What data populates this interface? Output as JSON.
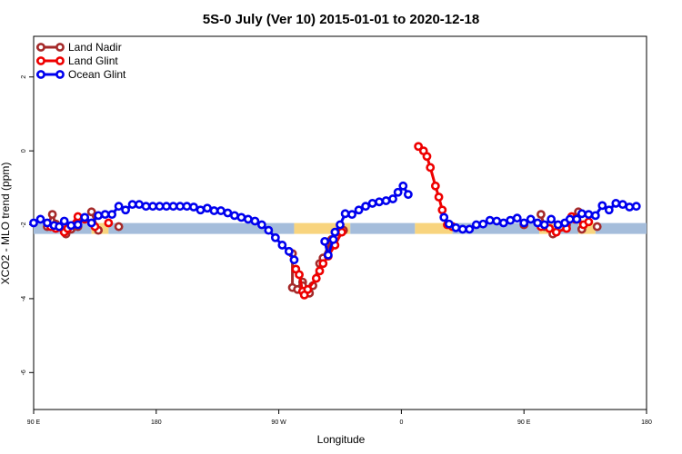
{
  "chart_data": {
    "type": "line",
    "title": "5S-0 July (Ver 10)   2015-01-01 to 2020-12-18",
    "xlabel": "Longitude",
    "ylabel": "XCO2 - MLO trend (ppm)",
    "xlim": [
      0,
      360
    ],
    "ylim": [
      -7,
      3.1
    ],
    "x_ticks": [
      {
        "value": 0,
        "label": "90 E"
      },
      {
        "value": 72,
        "label": "180"
      },
      {
        "value": 144,
        "label": "90 W"
      },
      {
        "value": 216,
        "label": "0"
      },
      {
        "value": 288,
        "label": "90 E"
      },
      {
        "value": 360,
        "label": "180"
      }
    ],
    "y_ticks": [
      {
        "value": -6,
        "label": "-6"
      },
      {
        "value": -4,
        "label": "-4"
      },
      {
        "value": -2,
        "label": "-2"
      },
      {
        "value": 0,
        "label": "0"
      },
      {
        "value": 2,
        "label": "2"
      }
    ],
    "land_ocean_band": {
      "y": -2.1,
      "segments": [
        {
          "x0": 0,
          "x1": 34,
          "kind": "ocean"
        },
        {
          "x0": 34,
          "x1": 44,
          "kind": "land"
        },
        {
          "x0": 44,
          "x1": 153,
          "kind": "ocean"
        },
        {
          "x0": 153,
          "x1": 186,
          "kind": "land"
        },
        {
          "x0": 186,
          "x1": 224,
          "kind": "ocean"
        },
        {
          "x0": 224,
          "x1": 246,
          "kind": "land"
        },
        {
          "x0": 246,
          "x1": 297,
          "kind": "ocean"
        },
        {
          "x0": 297,
          "x1": 306,
          "kind": "land"
        },
        {
          "x0": 306,
          "x1": 320,
          "kind": "ocean"
        },
        {
          "x0": 320,
          "x1": 330,
          "kind": "land"
        },
        {
          "x0": 330,
          "x1": 360,
          "kind": "ocean"
        }
      ],
      "colors": {
        "ocean": "#a5bddb",
        "land": "#f8d47e"
      }
    },
    "legend": {
      "placement": "top-left"
    },
    "series": [
      {
        "name": "Land Nadir",
        "color": "#a52a2a",
        "points": [
          [
            8,
            -2.05
          ],
          [
            11,
            -1.72
          ],
          [
            13,
            -1.98
          ],
          [
            19,
            -2.25
          ],
          [
            22,
            -2.12
          ],
          [
            26,
            -2.05
          ],
          [
            34,
            -1.65
          ],
          [
            38,
            -2.15
          ],
          [
            50,
            -2.05
          ],
          [
            152,
            -2.78
          ],
          [
            152,
            -3.7
          ],
          [
            155,
            -3.75
          ],
          [
            158,
            -3.55
          ],
          [
            158,
            -3.65
          ],
          [
            162,
            -3.85
          ],
          [
            164,
            -3.65
          ],
          [
            168,
            -3.05
          ],
          [
            170,
            -2.9
          ],
          [
            175,
            -2.4
          ],
          [
            178,
            -2.2
          ],
          [
            182,
            -2.15
          ],
          [
            288,
            -2.0
          ],
          [
            298,
            -1.72
          ],
          [
            300,
            -2.05
          ],
          [
            305,
            -2.25
          ],
          [
            313,
            -2.0
          ],
          [
            320,
            -1.65
          ],
          [
            322,
            -2.12
          ],
          [
            331,
            -2.05
          ]
        ]
      },
      {
        "name": "Land Glint",
        "color": "#ee0000",
        "points": [
          [
            10,
            -2.05
          ],
          [
            13,
            -2.1
          ],
          [
            18,
            -2.2
          ],
          [
            20,
            -2.1
          ],
          [
            26,
            -1.78
          ],
          [
            30,
            -1.85
          ],
          [
            36,
            -2.05
          ],
          [
            44,
            -1.95
          ],
          [
            154,
            -3.2
          ],
          [
            156,
            -3.35
          ],
          [
            158,
            -3.8
          ],
          [
            159,
            -3.9
          ],
          [
            161,
            -3.75
          ],
          [
            166,
            -3.45
          ],
          [
            168,
            -3.25
          ],
          [
            170,
            -3.05
          ],
          [
            173,
            -2.85
          ],
          [
            177,
            -2.55
          ],
          [
            181,
            -2.2
          ],
          [
            226,
            0.12
          ],
          [
            229,
            0.0
          ],
          [
            231,
            -0.15
          ],
          [
            233,
            -0.45
          ],
          [
            236,
            -0.95
          ],
          [
            238,
            -1.25
          ],
          [
            240,
            -1.6
          ],
          [
            243,
            -2.0
          ],
          [
            246,
            -2.05
          ],
          [
            298,
            -2.05
          ],
          [
            303,
            -2.1
          ],
          [
            307,
            -2.2
          ],
          [
            313,
            -2.1
          ],
          [
            316,
            -1.78
          ],
          [
            318,
            -1.85
          ],
          [
            323,
            -2.0
          ],
          [
            326,
            -1.92
          ]
        ]
      },
      {
        "name": "Ocean Glint",
        "color": "#0000ee",
        "points": [
          [
            0,
            -1.95
          ],
          [
            4,
            -1.85
          ],
          [
            8,
            -1.95
          ],
          [
            12,
            -2.02
          ],
          [
            15,
            -2.05
          ],
          [
            18,
            -1.9
          ],
          [
            22,
            -2.02
          ],
          [
            26,
            -2.0
          ],
          [
            30,
            -1.8
          ],
          [
            34,
            -1.95
          ],
          [
            38,
            -1.75
          ],
          [
            42,
            -1.72
          ],
          [
            46,
            -1.72
          ],
          [
            50,
            -1.5
          ],
          [
            54,
            -1.6
          ],
          [
            58,
            -1.45
          ],
          [
            62,
            -1.45
          ],
          [
            66,
            -1.5
          ],
          [
            70,
            -1.5
          ],
          [
            74,
            -1.5
          ],
          [
            78,
            -1.5
          ],
          [
            82,
            -1.5
          ],
          [
            86,
            -1.5
          ],
          [
            90,
            -1.5
          ],
          [
            94,
            -1.52
          ],
          [
            98,
            -1.6
          ],
          [
            102,
            -1.55
          ],
          [
            106,
            -1.62
          ],
          [
            110,
            -1.62
          ],
          [
            114,
            -1.68
          ],
          [
            118,
            -1.75
          ],
          [
            122,
            -1.8
          ],
          [
            126,
            -1.85
          ],
          [
            130,
            -1.9
          ],
          [
            134,
            -2.0
          ],
          [
            138,
            -2.15
          ],
          [
            142,
            -2.35
          ],
          [
            146,
            -2.55
          ],
          [
            150,
            -2.72
          ],
          [
            153,
            -2.95
          ],
          [
            171,
            -2.45
          ],
          [
            173,
            -2.82
          ],
          [
            176,
            -2.4
          ],
          [
            177,
            -2.2
          ],
          [
            180,
            -2.0
          ],
          [
            183,
            -1.7
          ],
          [
            187,
            -1.72
          ],
          [
            191,
            -1.6
          ],
          [
            195,
            -1.5
          ],
          [
            199,
            -1.42
          ],
          [
            203,
            -1.38
          ],
          [
            207,
            -1.35
          ],
          [
            211,
            -1.3
          ],
          [
            214,
            -1.12
          ],
          [
            217,
            -0.95
          ],
          [
            220,
            -1.18
          ],
          [
            241,
            -1.8
          ],
          [
            244,
            -1.98
          ],
          [
            248,
            -2.08
          ],
          [
            252,
            -2.12
          ],
          [
            256,
            -2.12
          ],
          [
            260,
            -2.0
          ],
          [
            264,
            -1.98
          ],
          [
            268,
            -1.88
          ],
          [
            272,
            -1.9
          ],
          [
            276,
            -1.95
          ],
          [
            280,
            -1.88
          ],
          [
            284,
            -1.82
          ],
          [
            288,
            -1.95
          ],
          [
            292,
            -1.85
          ],
          [
            296,
            -1.95
          ],
          [
            300,
            -2.0
          ],
          [
            304,
            -1.85
          ],
          [
            308,
            -2.0
          ],
          [
            312,
            -1.95
          ],
          [
            315,
            -1.85
          ],
          [
            319,
            -1.85
          ],
          [
            322,
            -1.7
          ],
          [
            326,
            -1.72
          ],
          [
            330,
            -1.75
          ],
          [
            334,
            -1.48
          ],
          [
            338,
            -1.6
          ],
          [
            342,
            -1.42
          ],
          [
            346,
            -1.45
          ],
          [
            350,
            -1.52
          ],
          [
            354,
            -1.5
          ]
        ]
      }
    ]
  }
}
